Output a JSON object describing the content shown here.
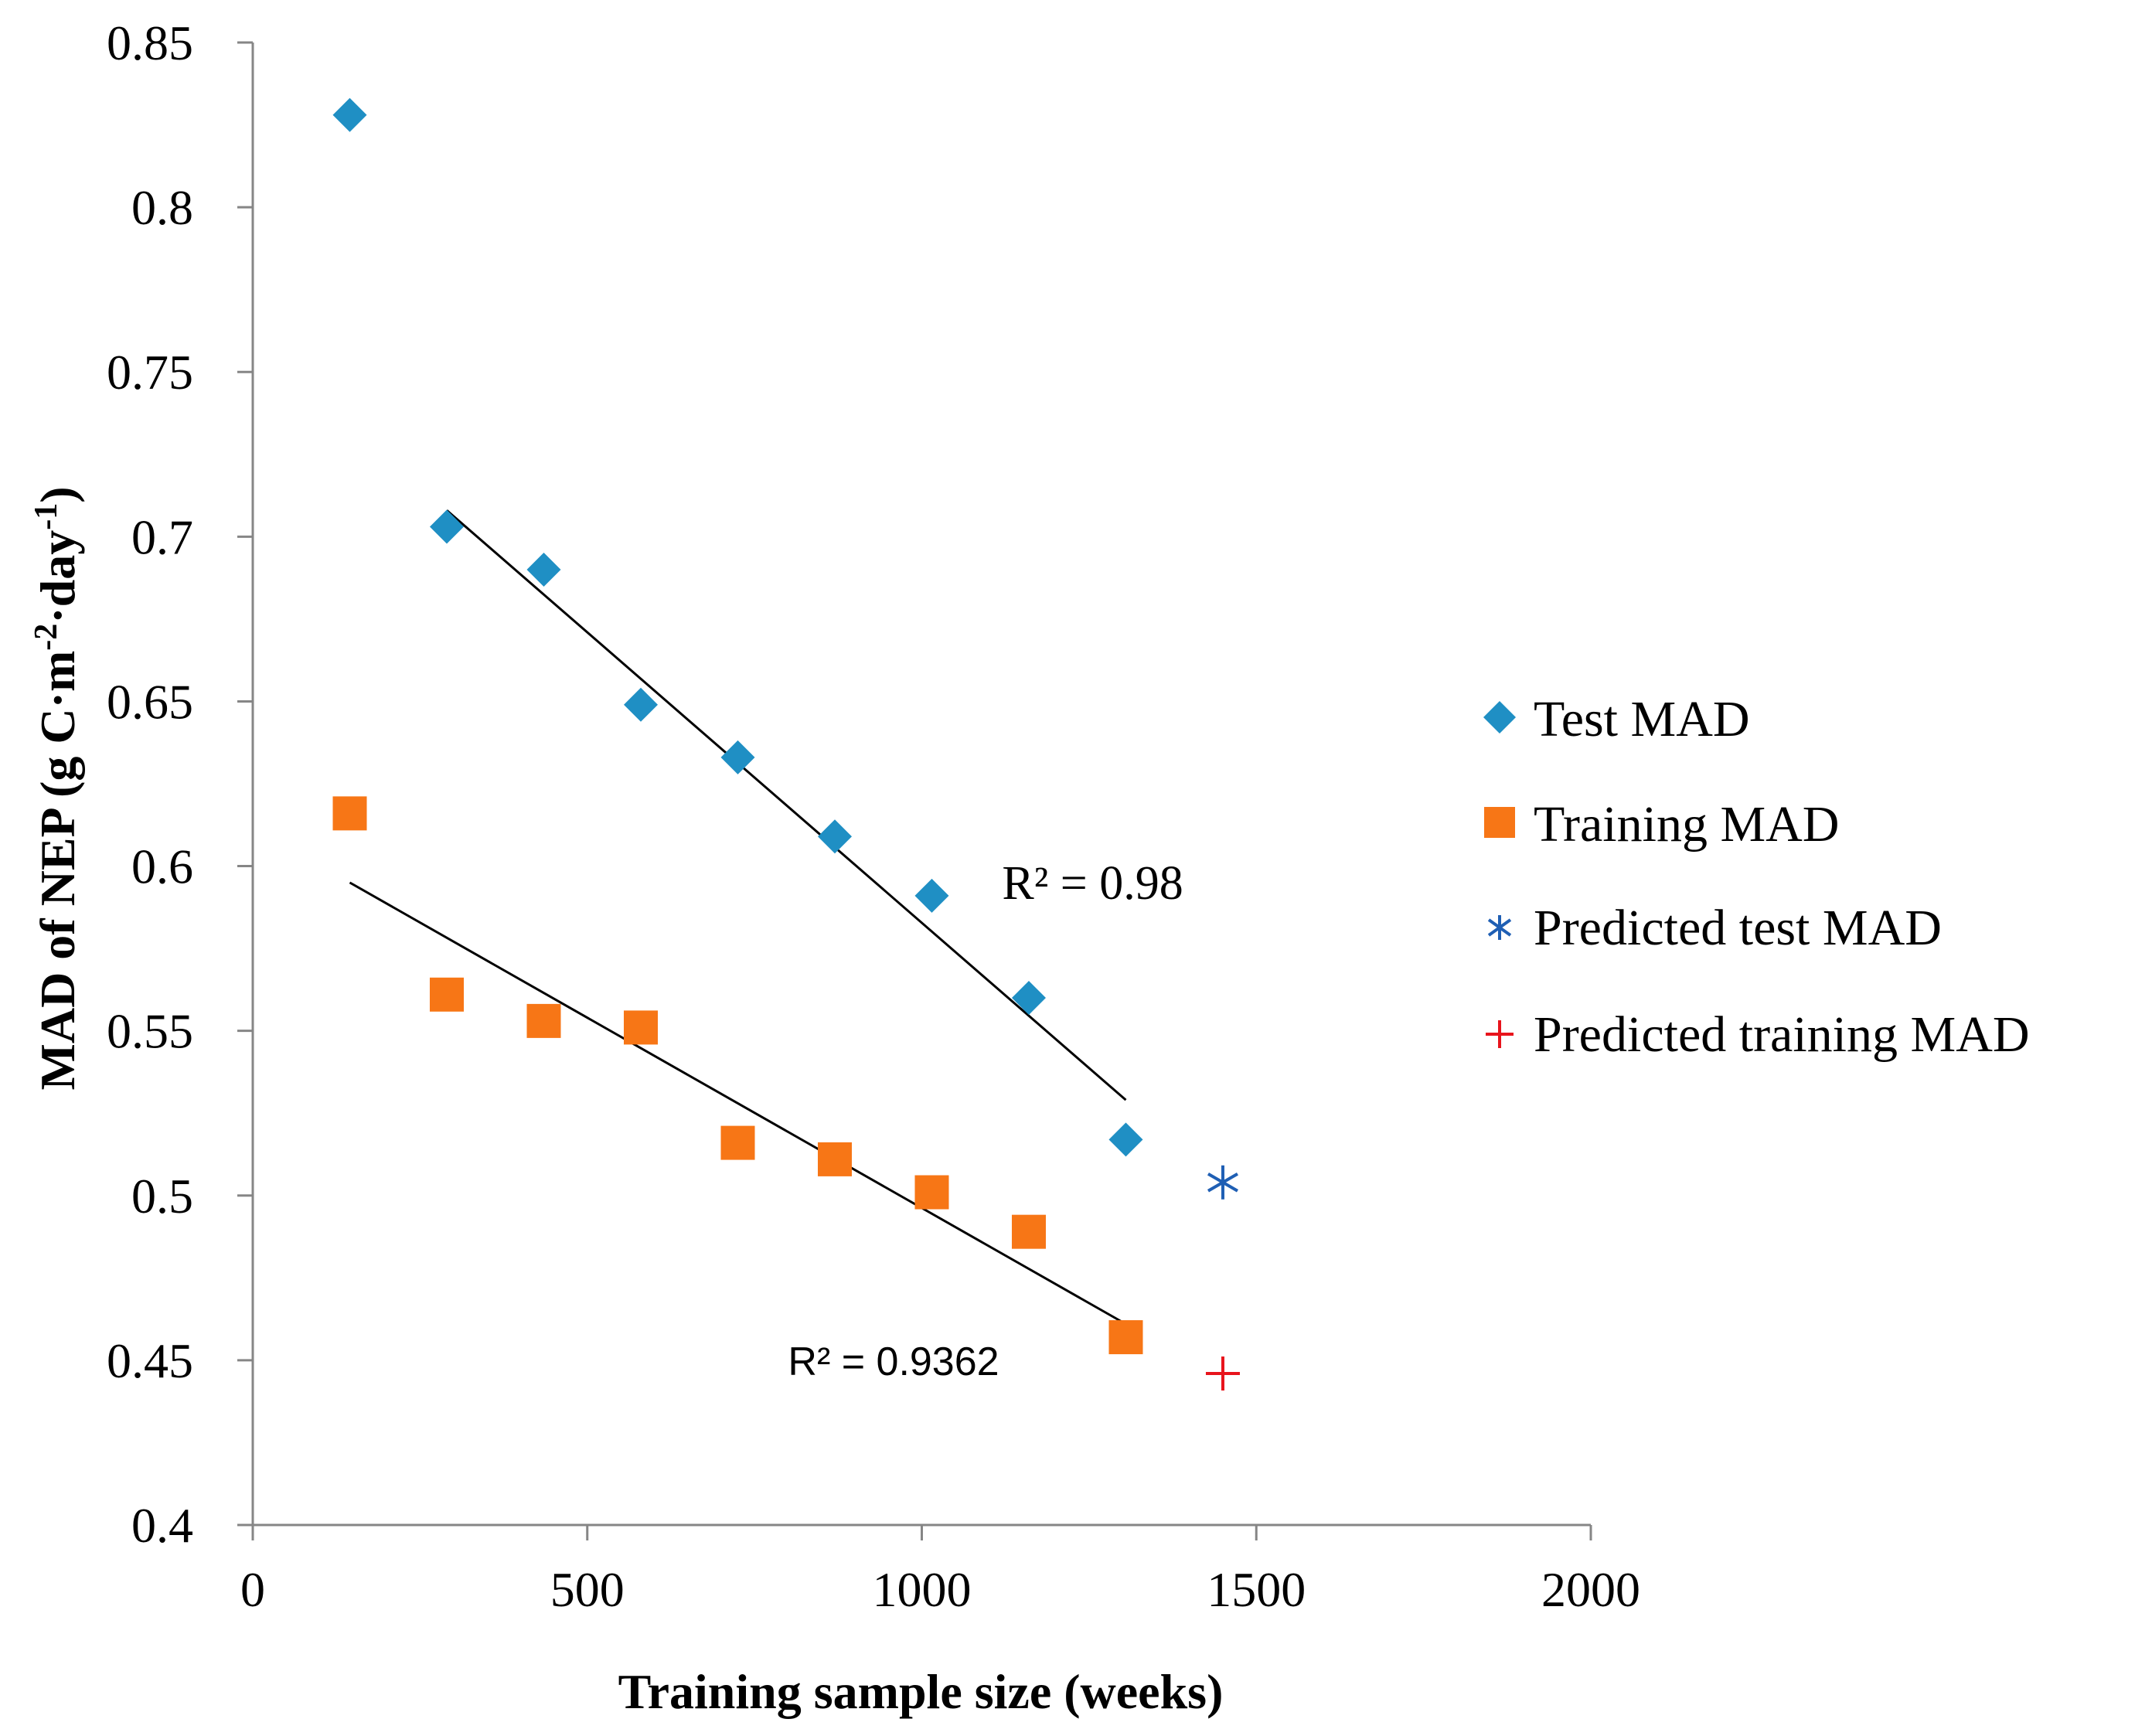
{
  "chart_data": {
    "type": "scatter",
    "title": "",
    "xlabel": "Training sample size (weeks)",
    "ylabel_parts": [
      "MAD of NEP (g C·m",
      "-2",
      "·day",
      "-1",
      ")"
    ],
    "xlim": [
      0,
      2000
    ],
    "ylim": [
      0.4,
      0.85
    ],
    "xticks": [
      0,
      500,
      1000,
      1500,
      2000
    ],
    "xtick_labels": [
      "0",
      "500",
      "1000",
      "1500",
      "2000"
    ],
    "yticks": [
      0.4,
      0.45,
      0.5,
      0.55,
      0.6,
      0.65,
      0.7,
      0.75,
      0.8,
      0.85
    ],
    "ytick_labels": [
      "0.4",
      "0.45",
      "0.5",
      "0.55",
      "0.6",
      "0.65",
      "0.7",
      "0.75",
      "0.8",
      "0.85"
    ],
    "grid": false,
    "legend_position": "right",
    "series": [
      {
        "name": "Test MAD",
        "marker": "diamond",
        "color": "#1f8fc4",
        "x": [
          145,
          290,
          435,
          580,
          725,
          870,
          1015,
          1160,
          1305
        ],
        "y": [
          0.828,
          0.703,
          0.69,
          0.649,
          0.633,
          0.609,
          0.591,
          0.56,
          0.517
        ]
      },
      {
        "name": "Training MAD",
        "marker": "square",
        "color": "#f77616",
        "x": [
          145,
          290,
          435,
          580,
          725,
          870,
          1015,
          1160,
          1305
        ],
        "y": [
          0.616,
          0.561,
          0.553,
          0.551,
          0.516,
          0.511,
          0.501,
          0.489,
          0.457
        ]
      },
      {
        "name": "Predicted test MAD",
        "marker": "asterisk",
        "color": "#1f5fb4",
        "x": [
          1450
        ],
        "y": [
          0.504
        ]
      },
      {
        "name": "Predicted training MAD",
        "marker": "plus",
        "color": "#e8141c",
        "x": [
          1450
        ],
        "y": [
          0.446
        ]
      }
    ],
    "trendlines": [
      {
        "name": "Test MAD trend",
        "x": [
          290,
          1305
        ],
        "y": [
          0.708,
          0.529
        ],
        "color": "#000000"
      },
      {
        "name": "Training MAD trend",
        "x": [
          145,
          1305
        ],
        "y": [
          0.595,
          0.461
        ],
        "color": "#000000"
      }
    ],
    "annotations": [
      {
        "name": "test-r2",
        "text": "R² = 0.98",
        "x": 1120,
        "y": 0.59,
        "style": "serif"
      },
      {
        "name": "training-r2",
        "text": "R² = 0.9362",
        "x": 800,
        "y": 0.4455,
        "style": "sans"
      }
    ]
  }
}
